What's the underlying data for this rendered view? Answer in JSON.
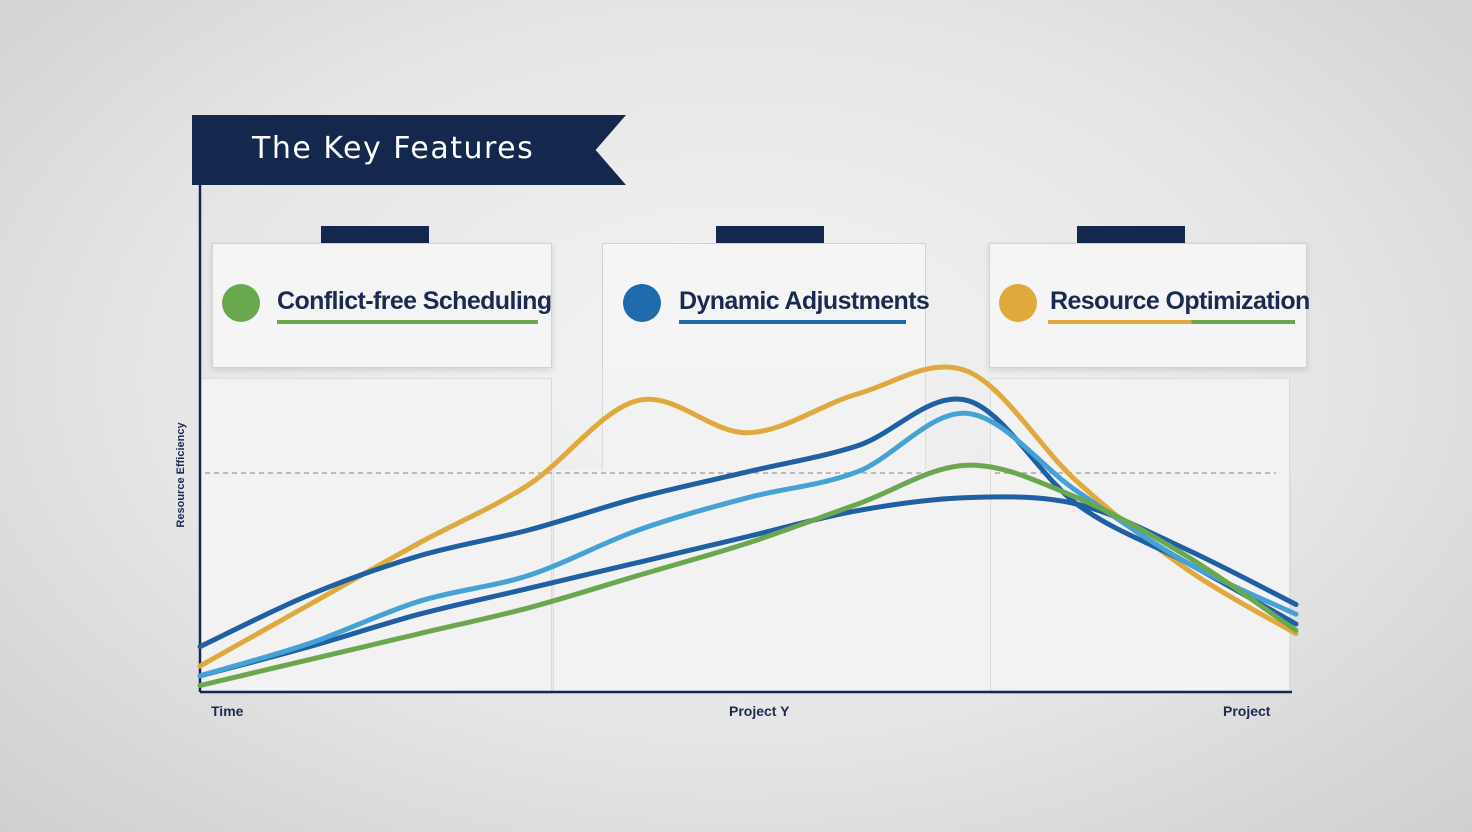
{
  "title": "The Key Features",
  "features": [
    {
      "label": "Conflict-free Scheduling",
      "dot_color": "#6aa84f",
      "underline_colors": [
        "#6aa84f",
        "#6aa84f"
      ]
    },
    {
      "label": "Dynamic Adjustments",
      "dot_color": "#1f6aad",
      "underline_colors": [
        "#1f6aad",
        "#1f6aad"
      ]
    },
    {
      "label": "Resource Optimization",
      "dot_color": "#e0a93e",
      "underline_colors": [
        "#e0a93e",
        "#6aa84f"
      ]
    }
  ],
  "chart_data": {
    "type": "line",
    "title": "",
    "ylabel": "Resource Efficiency",
    "xlabel": "",
    "x_tick_labels": [
      "Time",
      "Project Y",
      "Project"
    ],
    "x": [
      0,
      0.1,
      0.2,
      0.3,
      0.4,
      0.5,
      0.6,
      0.7,
      0.8,
      0.9,
      1.0
    ],
    "xlim": [
      0,
      1
    ],
    "ylim": [
      0,
      1
    ],
    "grid": true,
    "legend": "none",
    "series": [
      {
        "color": "#e0a93e",
        "values": [
          0.08,
          0.27,
          0.46,
          0.64,
          0.9,
          0.8,
          0.92,
          0.99,
          0.65,
          0.38,
          0.18
        ]
      },
      {
        "color": "#1f5fa3",
        "values": [
          0.14,
          0.3,
          0.42,
          0.5,
          0.6,
          0.68,
          0.76,
          0.9,
          0.58,
          0.4,
          0.21
        ]
      },
      {
        "color": "#1f5fa3",
        "values": [
          0.05,
          0.14,
          0.24,
          0.32,
          0.4,
          0.48,
          0.56,
          0.6,
          0.58,
          0.44,
          0.27
        ]
      },
      {
        "color": "#45a2d6",
        "values": [
          0.05,
          0.15,
          0.28,
          0.36,
          0.5,
          0.6,
          0.68,
          0.86,
          0.62,
          0.4,
          0.24
        ]
      },
      {
        "color": "#6aa84f",
        "values": [
          0.02,
          0.1,
          0.18,
          0.26,
          0.36,
          0.46,
          0.58,
          0.7,
          0.6,
          0.42,
          0.19
        ]
      }
    ]
  }
}
